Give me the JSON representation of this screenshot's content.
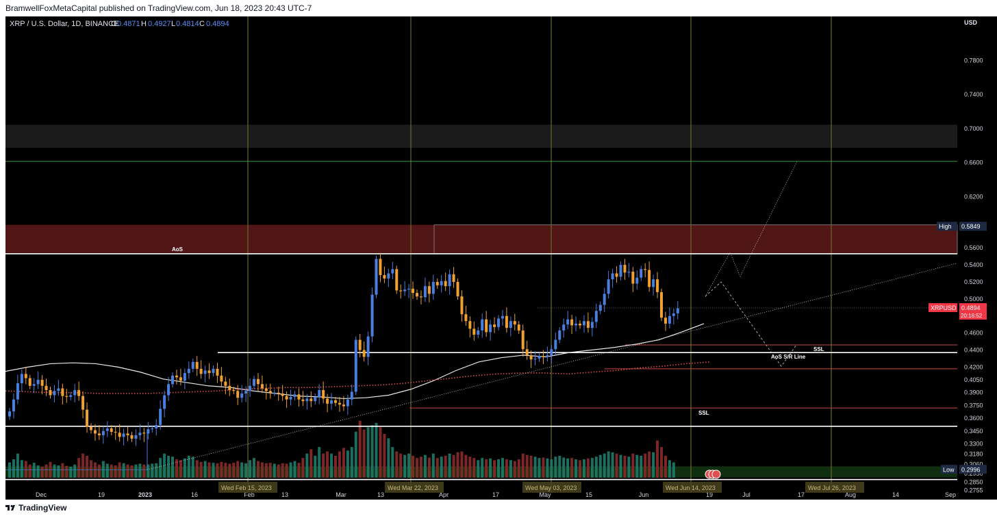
{
  "header": {
    "published": "BramwellFoxMetaCapital published on TradingView.com, Jun 18, 2023 20:43 UTC-7"
  },
  "footer": {
    "brand": "TradingView"
  },
  "colors": {
    "bg": "#000000",
    "up": "#4a7fe0",
    "down": "#f0a030",
    "ma": "#e8e8e8",
    "ema": "#e05050",
    "grid": "#6a6a30",
    "supply": "#5a1a1a",
    "demand": "#123312"
  },
  "symbol": {
    "title": "XRP / U.S. Dollar, 1D, BINANCE",
    "o_label": "O",
    "o": "0.4871",
    "h_label": "H",
    "h": "0.4927",
    "l_label": "L",
    "l": "0.4814",
    "c_label": "C",
    "c": "0.4894"
  },
  "chart_data": {
    "type": "candlestick",
    "currency": "USD",
    "ylim": [
      0.2725,
      0.822
    ],
    "price_ticks": [
      "0.7800",
      "0.7400",
      "0.7000",
      "0.6600",
      "0.6200",
      "0.5849",
      "0.5600",
      "0.5400",
      "0.5200",
      "0.5000",
      "0.4894",
      "0.4600",
      "0.4400",
      "0.4200",
      "0.4050",
      "0.3900",
      "0.3750",
      "0.3600",
      "0.3450",
      "0.3300",
      "0.3180",
      "0.3060",
      "0.2996",
      "0.2950",
      "0.2850",
      "0.2755"
    ],
    "x_ticks": [
      "Dec",
      "19",
      "2023",
      "16",
      "Feb",
      "13",
      "Mar",
      "13",
      "Apr",
      "17",
      "May",
      "15",
      "Jun",
      "19",
      "Jul",
      "17",
      "Aug",
      "14",
      "Sep"
    ],
    "date_markers": [
      "Wed Feb 15, 2023",
      "Wed Mar 22, 2023",
      "Wed May 03, 2023",
      "Wed Jun 14, 2023",
      "Wed Jul 26, 2023"
    ],
    "close": [
      0.368,
      0.382,
      0.401,
      0.412,
      0.407,
      0.398,
      0.4,
      0.405,
      0.398,
      0.393,
      0.387,
      0.392,
      0.395,
      0.386,
      0.385,
      0.387,
      0.393,
      0.386,
      0.37,
      0.35,
      0.346,
      0.342,
      0.34,
      0.345,
      0.348,
      0.344,
      0.343,
      0.338,
      0.342,
      0.34,
      0.336,
      0.34,
      0.343,
      0.342,
      0.347,
      0.348,
      0.352,
      0.371,
      0.387,
      0.4,
      0.41,
      0.408,
      0.404,
      0.413,
      0.418,
      0.426,
      0.418,
      0.412,
      0.416,
      0.413,
      0.418,
      0.41,
      0.403,
      0.398,
      0.393,
      0.392,
      0.384,
      0.389,
      0.392,
      0.398,
      0.406,
      0.4,
      0.395,
      0.392,
      0.39,
      0.39,
      0.389,
      0.386,
      0.382,
      0.385,
      0.388,
      0.382,
      0.38,
      0.383,
      0.38,
      0.385,
      0.393,
      0.383,
      0.377,
      0.381,
      0.378,
      0.376,
      0.374,
      0.382,
      0.391,
      0.452,
      0.44,
      0.432,
      0.456,
      0.505,
      0.547,
      0.528,
      0.524,
      0.53,
      0.535,
      0.51,
      0.509,
      0.511,
      0.512,
      0.507,
      0.503,
      0.502,
      0.515,
      0.506,
      0.52,
      0.516,
      0.521,
      0.515,
      0.529,
      0.52,
      0.503,
      0.482,
      0.474,
      0.465,
      0.458,
      0.463,
      0.476,
      0.461,
      0.47,
      0.467,
      0.477,
      0.48,
      0.466,
      0.474,
      0.47,
      0.463,
      0.441,
      0.434,
      0.429,
      0.43,
      0.433,
      0.432,
      0.434,
      0.441,
      0.452,
      0.463,
      0.47,
      0.476,
      0.469,
      0.471,
      0.469,
      0.474,
      0.466,
      0.473,
      0.486,
      0.493,
      0.506,
      0.523,
      0.53,
      0.526,
      0.54,
      0.531,
      0.532,
      0.518,
      0.525,
      0.535,
      0.534,
      0.514,
      0.523,
      0.508,
      0.478,
      0.471,
      0.48,
      0.483,
      0.489
    ],
    "ma": [
      0.415,
      0.42,
      0.424,
      0.425,
      0.424,
      0.42,
      0.414,
      0.406,
      0.402,
      0.398,
      0.396,
      0.392,
      0.389,
      0.386,
      0.385,
      0.383,
      0.384,
      0.387,
      0.394,
      0.404,
      0.416,
      0.426,
      0.431,
      0.434,
      0.432,
      0.437,
      0.44,
      0.443,
      0.447,
      0.452,
      0.461,
      0.471
    ],
    "ema": [
      0.392,
      0.391,
      0.39,
      0.39,
      0.389,
      0.389,
      0.389,
      0.39,
      0.391,
      0.392,
      0.394,
      0.395,
      0.396,
      0.396,
      0.397,
      0.398,
      0.399,
      0.401,
      0.404,
      0.407,
      0.41,
      0.412,
      0.413,
      0.413,
      0.412,
      0.414,
      0.416,
      0.419,
      0.421,
      0.424,
      0.426
    ],
    "volume": [
      0.35,
      0.42,
      0.55,
      0.4,
      0.38,
      0.3,
      0.34,
      0.28,
      0.25,
      0.3,
      0.36,
      0.3,
      0.28,
      0.33,
      0.27,
      0.25,
      0.3,
      0.45,
      0.55,
      0.5,
      0.4,
      0.35,
      0.3,
      0.38,
      0.32,
      0.3,
      0.28,
      0.35,
      0.33,
      0.3,
      0.28,
      0.3,
      0.32,
      0.3,
      0.3,
      0.32,
      0.33,
      0.45,
      0.55,
      0.5,
      0.48,
      0.42,
      0.4,
      0.44,
      0.5,
      0.48,
      0.4,
      0.36,
      0.38,
      0.35,
      0.34,
      0.33,
      0.36,
      0.34,
      0.32,
      0.34,
      0.38,
      0.35,
      0.33,
      0.4,
      0.45,
      0.38,
      0.35,
      0.33,
      0.34,
      0.32,
      0.3,
      0.33,
      0.32,
      0.35,
      0.38,
      0.34,
      0.45,
      0.55,
      0.65,
      0.5,
      0.7,
      0.55,
      0.6,
      0.55,
      0.5,
      0.6,
      0.68,
      0.62,
      0.7,
      1.05,
      1.3,
      1.1,
      1.15,
      1.2,
      1.25,
      1.15,
      1.0,
      0.9,
      0.7,
      0.6,
      0.55,
      0.52,
      0.55,
      0.5,
      0.45,
      0.48,
      0.52,
      0.46,
      0.55,
      0.45,
      0.48,
      0.5,
      0.55,
      0.52,
      0.58,
      0.6,
      0.52,
      0.48,
      0.45,
      0.4,
      0.45,
      0.42,
      0.44,
      0.4,
      0.42,
      0.45,
      0.42,
      0.4,
      0.38,
      0.42,
      0.55,
      0.52,
      0.5,
      0.48,
      0.45,
      0.46,
      0.44,
      0.42,
      0.48,
      0.5,
      0.46,
      0.44,
      0.45,
      0.42,
      0.4,
      0.42,
      0.44,
      0.45,
      0.48,
      0.52,
      0.55,
      0.6,
      0.58,
      0.55,
      0.52,
      0.5,
      0.48,
      0.55,
      0.52,
      0.5,
      0.55,
      0.6,
      0.58,
      0.85,
      0.7,
      0.5,
      0.4,
      0.35
    ],
    "levels": [
      {
        "price": 0.6615,
        "color": "#3a9a3a",
        "label": ""
      },
      {
        "price": 0.553,
        "color": "#ffffff",
        "label": "AoS"
      },
      {
        "price": 0.437,
        "color": "#ffffff",
        "label": "AoS S/R Line"
      },
      {
        "price": 0.446,
        "color": "#c84848",
        "label": "SSL"
      },
      {
        "price": 0.418,
        "color": "#c84848",
        "label": ""
      },
      {
        "price": 0.372,
        "color": "#c84848",
        "label": "SSL"
      },
      {
        "price": 0.3505,
        "color": "#ffffff",
        "label": ""
      },
      {
        "price": 0.288,
        "color": "#ffffff",
        "label": ""
      }
    ],
    "zones": [
      {
        "from": 0.6775,
        "to": 0.7045,
        "color": "#1e1e1e"
      },
      {
        "from": 0.553,
        "to": 0.587,
        "color": "#5a1a1a"
      },
      {
        "from": 0.2905,
        "to": 0.3035,
        "color": "#123312"
      }
    ],
    "labels": [
      {
        "text": "High",
        "value": "0.5849"
      },
      {
        "text": "XRPUSD",
        "value": "0.4894",
        "countdown": "20:16:52"
      },
      {
        "text": "Low",
        "value": "0.2996"
      }
    ]
  }
}
